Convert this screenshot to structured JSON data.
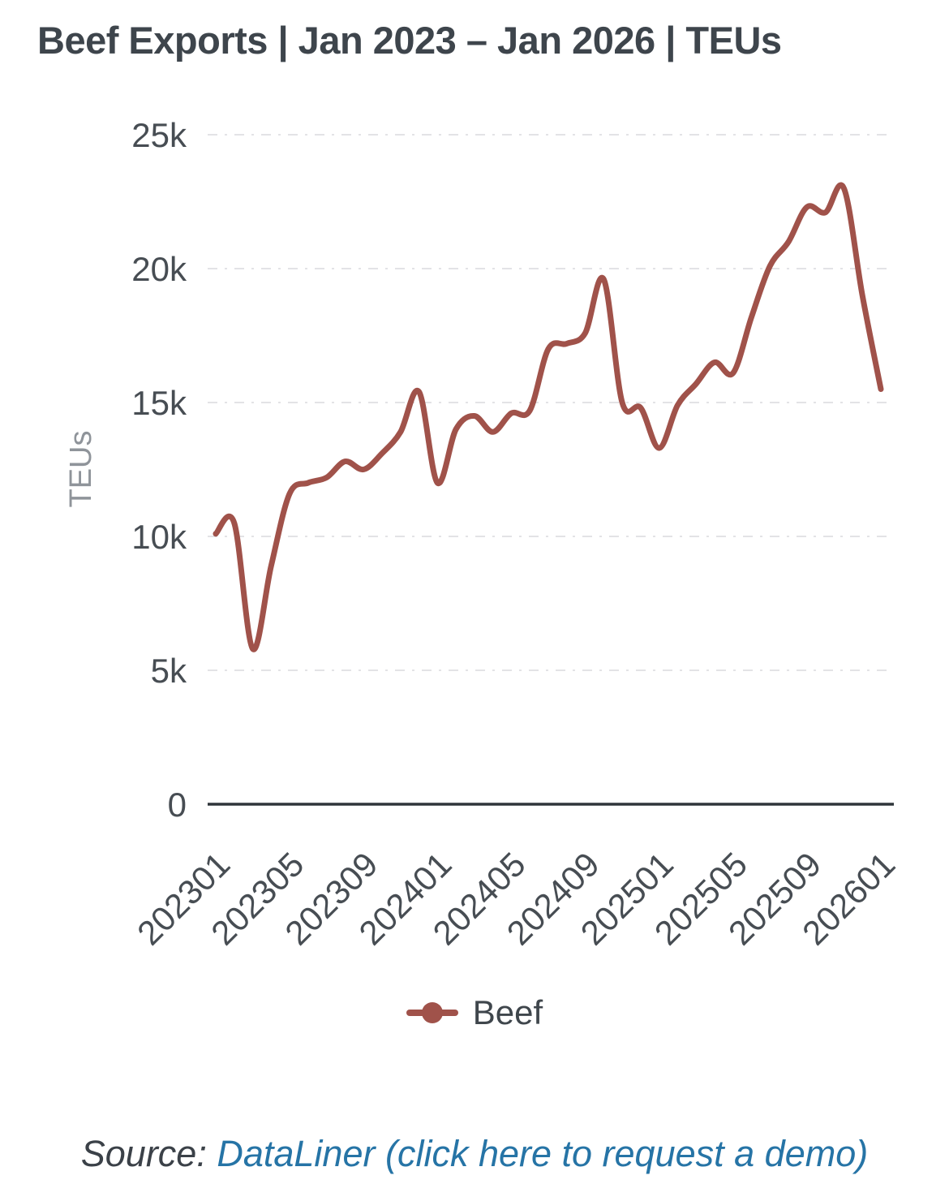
{
  "chart_data": {
    "type": "line",
    "title": "Beef Exports | Jan 2023 – Jan 2026 | TEUs",
    "ylabel": "TEUs",
    "legend": [
      "Beef"
    ],
    "legend_position": "bottom",
    "grid": "horizontal dashed gridlines, no vertical gridlines, solid bottom axis only",
    "x_tick_rotation": -45,
    "ylim": [
      0,
      25000
    ],
    "y_ticks": [
      {
        "value": 0,
        "label": "0"
      },
      {
        "value": 5000,
        "label": "5k"
      },
      {
        "value": 10000,
        "label": "10k"
      },
      {
        "value": 15000,
        "label": "15k"
      },
      {
        "value": 20000,
        "label": "20k"
      },
      {
        "value": 25000,
        "label": "25k"
      }
    ],
    "x": [
      "202301",
      "202302",
      "202303",
      "202304",
      "202305",
      "202306",
      "202307",
      "202308",
      "202309",
      "202310",
      "202311",
      "202312",
      "202401",
      "202402",
      "202403",
      "202404",
      "202405",
      "202406",
      "202407",
      "202408",
      "202409",
      "202410",
      "202411",
      "202412",
      "202501",
      "202502",
      "202503",
      "202504",
      "202505",
      "202506",
      "202507",
      "202508",
      "202509",
      "202510",
      "202511",
      "202512",
      "202601"
    ],
    "x_ticks_shown": [
      "202301",
      "202305",
      "202309",
      "202401",
      "202405",
      "202409",
      "202501",
      "202505",
      "202509",
      "202601"
    ],
    "series": [
      {
        "name": "Beef",
        "values": [
          10100,
          10500,
          5800,
          8900,
          11600,
          12000,
          12200,
          12800,
          12500,
          13100,
          13900,
          15400,
          12000,
          14000,
          14500,
          13900,
          14600,
          14700,
          17000,
          17200,
          17600,
          19600,
          15000,
          14800,
          13300,
          14900,
          15700,
          16500,
          16100,
          18200,
          20100,
          21000,
          22300,
          22100,
          23000,
          19000,
          15500
        ]
      }
    ],
    "colors": {
      "line": "#a0524a",
      "axis_line": "#2f353a",
      "gridline": "#e3e3e6",
      "tick_label": "#474d53",
      "axis_name": "#8f949a",
      "title_text": "#3e454c"
    }
  },
  "legend": {
    "label": "Beef"
  },
  "source": {
    "prefix": "Source: ",
    "link_text": "DataLiner (click here to request a demo)"
  }
}
